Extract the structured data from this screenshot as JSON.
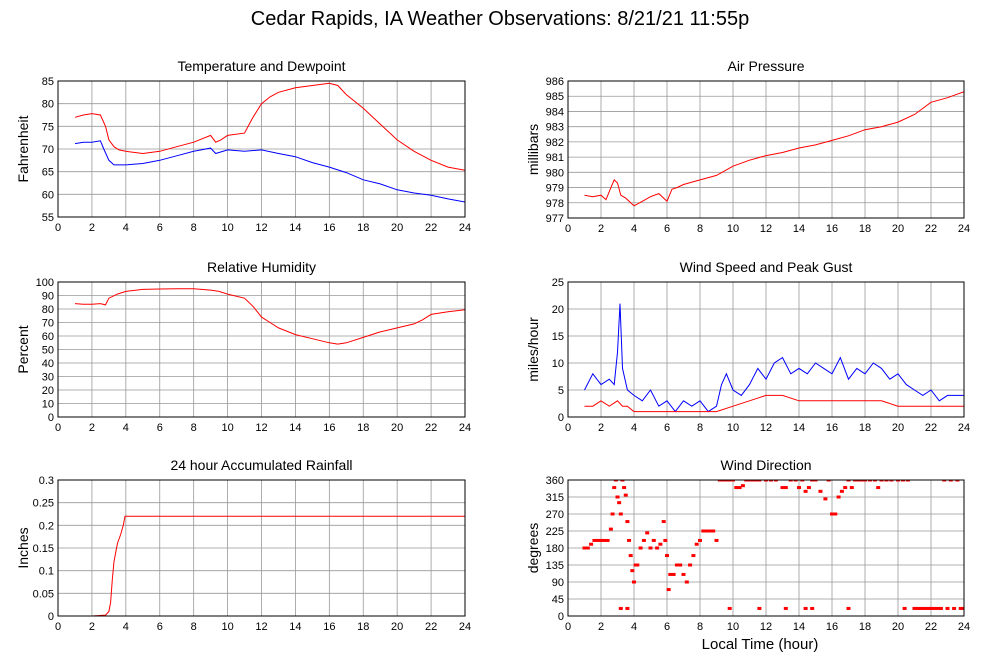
{
  "title": "Cedar Rapids, IA Weather Observations: 8/21/21 11:55p",
  "x_axis_title": "Local Time (hour)",
  "colors": {
    "red": "#ff0000",
    "blue": "#0000ff",
    "grid": "#999999"
  },
  "chart_data": [
    {
      "type": "line",
      "title": "Temperature and Dewpoint",
      "ylabel": "Fahrenheit",
      "xlim": [
        0,
        24
      ],
      "ylim": [
        55,
        85
      ],
      "xticks": [
        0,
        2,
        4,
        6,
        8,
        10,
        12,
        14,
        16,
        18,
        20,
        22,
        24
      ],
      "yticks": [
        55,
        60,
        65,
        70,
        75,
        80,
        85
      ],
      "series": [
        {
          "color": "#ff0000",
          "x": [
            1,
            1.5,
            2,
            2.5,
            2.8,
            3.0,
            3.3,
            3.6,
            4,
            5,
            6,
            7,
            8,
            9,
            9.3,
            9.6,
            10,
            11,
            11.5,
            12,
            12.5,
            13,
            14,
            15,
            16,
            16.5,
            17,
            18,
            19,
            20,
            21,
            22,
            23,
            24
          ],
          "y": [
            77,
            77.5,
            77.8,
            77.5,
            75,
            72,
            70.5,
            69.8,
            69.5,
            69,
            69.5,
            70.5,
            71.5,
            73,
            71.5,
            72,
            73,
            73.5,
            77,
            80,
            81.5,
            82.5,
            83.5,
            84,
            84.5,
            84,
            82,
            79,
            75.5,
            72,
            69.5,
            67.5,
            66,
            65.3
          ]
        },
        {
          "color": "#0000ff",
          "x": [
            1,
            1.5,
            2,
            2.5,
            2.7,
            3.0,
            3.3,
            4,
            5,
            6,
            7,
            8,
            9,
            9.3,
            10,
            11,
            12,
            13,
            14,
            15,
            16,
            17,
            18,
            19,
            20,
            21,
            22,
            23,
            24
          ],
          "y": [
            71.2,
            71.5,
            71.5,
            71.8,
            70,
            67.5,
            66.5,
            66.5,
            66.8,
            67.5,
            68.5,
            69.5,
            70.2,
            69,
            69.8,
            69.5,
            69.8,
            69,
            68.3,
            67,
            66,
            64.8,
            63.2,
            62.3,
            61,
            60.3,
            59.8,
            59,
            58.3
          ]
        }
      ]
    },
    {
      "type": "line",
      "title": "Air Pressure",
      "ylabel": "millibars",
      "xlim": [
        0,
        24
      ],
      "ylim": [
        977,
        986
      ],
      "xticks": [
        0,
        2,
        4,
        6,
        8,
        10,
        12,
        14,
        16,
        18,
        20,
        22,
        24
      ],
      "yticks": [
        977,
        978,
        979,
        980,
        981,
        982,
        983,
        984,
        985,
        986
      ],
      "series": [
        {
          "color": "#ff0000",
          "x": [
            1,
            1.5,
            2,
            2.3,
            2.6,
            2.8,
            3.0,
            3.2,
            3.5,
            3.8,
            4.0,
            4.5,
            5,
            5.5,
            6,
            6.3,
            6.6,
            7,
            8,
            9,
            10,
            11,
            12,
            13,
            14,
            15,
            16,
            17,
            18,
            19,
            20,
            21,
            21.5,
            22,
            23,
            24
          ],
          "y": [
            978.5,
            978.4,
            978.5,
            978.2,
            979,
            979.5,
            979.3,
            978.5,
            978.3,
            978.0,
            977.8,
            978.1,
            978.4,
            978.6,
            978.1,
            978.9,
            979.0,
            979.2,
            979.5,
            979.8,
            980.4,
            980.8,
            981.1,
            981.3,
            981.6,
            981.8,
            982.1,
            982.4,
            982.8,
            983.0,
            983.3,
            983.8,
            984.2,
            984.6,
            984.9,
            985.3
          ]
        }
      ]
    },
    {
      "type": "line",
      "title": "Relative Humidity",
      "ylabel": "Percent",
      "xlim": [
        0,
        24
      ],
      "ylim": [
        0,
        100
      ],
      "xticks": [
        0,
        2,
        4,
        6,
        8,
        10,
        12,
        14,
        16,
        18,
        20,
        22,
        24
      ],
      "yticks": [
        0,
        10,
        20,
        30,
        40,
        50,
        60,
        70,
        80,
        90,
        100
      ],
      "series": [
        {
          "color": "#ff0000",
          "x": [
            1,
            1.5,
            2,
            2.5,
            2.8,
            3.0,
            3.5,
            4,
            5,
            6,
            7,
            8,
            9,
            9.5,
            10,
            11,
            11.5,
            12,
            12.5,
            13,
            14,
            15,
            16,
            16.5,
            17,
            18,
            19,
            20,
            21,
            21.5,
            22,
            23,
            24
          ],
          "y": [
            84,
            83.5,
            83.5,
            84,
            83,
            88,
            91,
            93,
            94.5,
            94.8,
            95,
            95,
            94,
            93,
            91,
            88,
            82,
            74,
            70,
            66,
            61,
            58,
            55,
            54,
            55,
            59,
            63,
            66,
            69,
            72,
            76,
            78,
            79.5
          ]
        }
      ]
    },
    {
      "type": "line",
      "title": "Wind Speed and Peak Gust",
      "ylabel": "miles/hour",
      "xlim": [
        0,
        24
      ],
      "ylim": [
        0,
        25
      ],
      "xticks": [
        0,
        2,
        4,
        6,
        8,
        10,
        12,
        14,
        16,
        18,
        20,
        22,
        24
      ],
      "yticks": [
        0,
        5,
        10,
        15,
        20,
        25
      ],
      "series": [
        {
          "color": "#0000ff",
          "x": [
            1,
            1.5,
            2,
            2.5,
            2.8,
            3.0,
            3.15,
            3.3,
            3.6,
            4,
            4.5,
            5,
            5.5,
            6,
            6.5,
            7,
            7.5,
            8,
            8.5,
            9,
            9.3,
            9.6,
            10,
            10.5,
            11,
            11.5,
            12,
            12.5,
            13,
            13.5,
            14,
            14.5,
            15,
            15.5,
            16,
            16.5,
            17,
            17.5,
            18,
            18.5,
            19,
            19.5,
            20,
            20.5,
            21,
            21.5,
            22,
            22.5,
            23,
            23.5,
            24
          ],
          "y": [
            5,
            8,
            6,
            7,
            6,
            12,
            21,
            9,
            5,
            4,
            3,
            5,
            2,
            3,
            1,
            3,
            2,
            3,
            1,
            2,
            6,
            8,
            5,
            4,
            6,
            9,
            7,
            10,
            11,
            8,
            9,
            8,
            10,
            9,
            8,
            11,
            7,
            9,
            8,
            10,
            9,
            7,
            8,
            6,
            5,
            4,
            5,
            3,
            4,
            4,
            4
          ]
        },
        {
          "color": "#ff0000",
          "x": [
            1,
            1.5,
            2,
            2.5,
            3,
            3.3,
            3.6,
            4,
            5,
            6,
            7,
            8,
            9,
            10,
            11,
            12,
            13,
            14,
            15,
            16,
            17,
            18,
            19,
            20,
            21,
            22,
            23,
            24
          ],
          "y": [
            2,
            2,
            3,
            2,
            3,
            2,
            2,
            1,
            1,
            1,
            1,
            1,
            1,
            2,
            3,
            4,
            4,
            3,
            3,
            3,
            3,
            3,
            3,
            2,
            2,
            2,
            2,
            2
          ]
        }
      ]
    },
    {
      "type": "line",
      "title": "24 hour Accumulated Rainfall",
      "ylabel": "Inches",
      "xlim": [
        0,
        24
      ],
      "ylim": [
        0,
        0.3
      ],
      "xticks": [
        0,
        2,
        4,
        6,
        8,
        10,
        12,
        14,
        16,
        18,
        20,
        22,
        24
      ],
      "yticks": [
        0,
        0.05,
        0.1,
        0.15,
        0.2,
        0.25,
        0.3
      ],
      "series": [
        {
          "color": "#ff0000",
          "x": [
            1,
            2,
            2.8,
            3.0,
            3.1,
            3.2,
            3.3,
            3.5,
            3.7,
            3.85,
            3.95,
            4,
            24
          ],
          "y": [
            0,
            0,
            0.002,
            0.01,
            0.03,
            0.08,
            0.12,
            0.16,
            0.18,
            0.2,
            0.22,
            0.22,
            0.22
          ]
        }
      ]
    },
    {
      "type": "scatter",
      "title": "Wind Direction",
      "ylabel": "degrees",
      "xlim": [
        0,
        24
      ],
      "ylim": [
        0,
        360
      ],
      "xticks": [
        0,
        2,
        4,
        6,
        8,
        10,
        12,
        14,
        16,
        18,
        20,
        22,
        24
      ],
      "yticks": [
        0,
        45,
        90,
        135,
        180,
        225,
        270,
        315,
        360
      ],
      "series": [
        {
          "color": "#ff0000",
          "points": [
            [
              1.0,
              180
            ],
            [
              1.2,
              180
            ],
            [
              1.4,
              190
            ],
            [
              1.6,
              200
            ],
            [
              1.8,
              200
            ],
            [
              2.0,
              200
            ],
            [
              2.2,
              200
            ],
            [
              2.4,
              200
            ],
            [
              2.6,
              230
            ],
            [
              2.7,
              270
            ],
            [
              2.8,
              340
            ],
            [
              2.9,
              360
            ],
            [
              3.0,
              315
            ],
            [
              3.1,
              300
            ],
            [
              3.2,
              270
            ],
            [
              3.3,
              360
            ],
            [
              3.4,
              340
            ],
            [
              3.5,
              320
            ],
            [
              3.6,
              250
            ],
            [
              3.7,
              200
            ],
            [
              3.8,
              160
            ],
            [
              3.9,
              120
            ],
            [
              4.0,
              90
            ],
            [
              4.1,
              135
            ],
            [
              4.2,
              135
            ],
            [
              4.4,
              180
            ],
            [
              4.6,
              200
            ],
            [
              4.8,
              220
            ],
            [
              5.0,
              180
            ],
            [
              5.2,
              200
            ],
            [
              5.4,
              180
            ],
            [
              5.6,
              190
            ],
            [
              5.8,
              250
            ],
            [
              5.9,
              200
            ],
            [
              6.0,
              160
            ],
            [
              6.1,
              70
            ],
            [
              6.2,
              110
            ],
            [
              6.4,
              110
            ],
            [
              6.6,
              135
            ],
            [
              6.8,
              135
            ],
            [
              7.0,
              110
            ],
            [
              7.2,
              90
            ],
            [
              7.4,
              135
            ],
            [
              7.6,
              160
            ],
            [
              7.8,
              190
            ],
            [
              8.0,
              200
            ],
            [
              8.2,
              225
            ],
            [
              8.4,
              225
            ],
            [
              8.6,
              225
            ],
            [
              8.8,
              225
            ],
            [
              9.0,
              200
            ],
            [
              9.2,
              360
            ],
            [
              9.4,
              360
            ],
            [
              9.6,
              360
            ],
            [
              9.8,
              360
            ],
            [
              10.0,
              360
            ],
            [
              10.2,
              340
            ],
            [
              10.4,
              340
            ],
            [
              10.6,
              345
            ],
            [
              10.8,
              360
            ],
            [
              11.0,
              360
            ],
            [
              11.2,
              360
            ],
            [
              11.4,
              360
            ],
            [
              11.6,
              360
            ],
            [
              12.0,
              360
            ],
            [
              12.3,
              360
            ],
            [
              12.6,
              360
            ],
            [
              13.0,
              340
            ],
            [
              13.2,
              340
            ],
            [
              13.5,
              360
            ],
            [
              13.8,
              360
            ],
            [
              14.0,
              340
            ],
            [
              14.2,
              360
            ],
            [
              14.4,
              330
            ],
            [
              14.6,
              340
            ],
            [
              14.8,
              360
            ],
            [
              15.0,
              360
            ],
            [
              15.3,
              330
            ],
            [
              15.6,
              310
            ],
            [
              15.8,
              360
            ],
            [
              16.0,
              270
            ],
            [
              16.2,
              270
            ],
            [
              16.4,
              315
            ],
            [
              16.6,
              330
            ],
            [
              16.8,
              340
            ],
            [
              17.0,
              360
            ],
            [
              17.2,
              340
            ],
            [
              17.4,
              360
            ],
            [
              17.6,
              360
            ],
            [
              17.8,
              360
            ],
            [
              18.0,
              360
            ],
            [
              18.3,
              360
            ],
            [
              18.6,
              360
            ],
            [
              18.8,
              340
            ],
            [
              19.0,
              360
            ],
            [
              19.3,
              360
            ],
            [
              19.6,
              360
            ],
            [
              20.0,
              360
            ],
            [
              20.3,
              360
            ],
            [
              20.6,
              360
            ],
            [
              21.0,
              20
            ],
            [
              21.2,
              20
            ],
            [
              21.4,
              20
            ],
            [
              21.6,
              20
            ],
            [
              21.8,
              20
            ],
            [
              22.0,
              20
            ],
            [
              22.2,
              20
            ],
            [
              22.4,
              20
            ],
            [
              22.6,
              20
            ],
            [
              22.8,
              360
            ],
            [
              23.0,
              20
            ],
            [
              23.2,
              360
            ],
            [
              23.4,
              20
            ],
            [
              23.6,
              360
            ],
            [
              23.8,
              20
            ],
            [
              24.0,
              20
            ],
            [
              3.2,
              20
            ],
            [
              3.6,
              20
            ],
            [
              9.8,
              20
            ],
            [
              11.6,
              20
            ],
            [
              13.2,
              20
            ],
            [
              14.4,
              20
            ],
            [
              14.8,
              20
            ],
            [
              17.0,
              20
            ],
            [
              20.4,
              20
            ]
          ]
        }
      ]
    }
  ]
}
